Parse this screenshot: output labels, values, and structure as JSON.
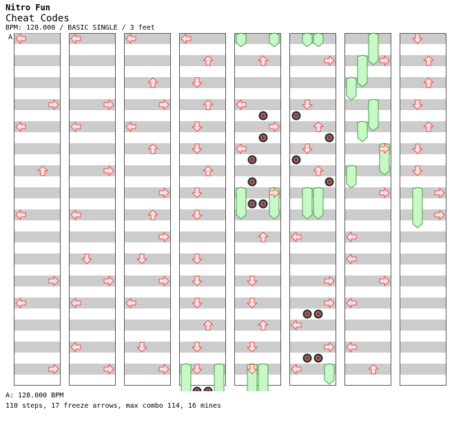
{
  "song": {
    "artist": "Nitro Fun",
    "title": "Cheat Codes",
    "info": "BPM: 128.000 / BASIC SINGLE / 3 feet"
  },
  "section_marker": "A",
  "footer": {
    "bpm_line": "A: 128.000 BPM",
    "stats": "110 steps, 17 freeze arrows, max combo 114, 16 mines"
  },
  "stats": {
    "steps": 110,
    "freeze_arrows": 17,
    "max_combo": 114,
    "mines": 16,
    "bpm": 128.0,
    "difficulty": "BASIC",
    "style": "SINGLE",
    "feet": 3
  },
  "colors": {
    "arrow_fill": "#ffe0e0",
    "arrow_stroke": "#e05050",
    "freeze_fill": "#c8f8c8",
    "freeze_stroke": "#40a040",
    "mine_outer": "#303030",
    "mine_center": "#c02020",
    "stripe": "#cccccc"
  },
  "lanes": [
    "left",
    "down",
    "up",
    "right"
  ],
  "chart_data": {
    "type": "step-chart",
    "measures_per_column": 4,
    "rows_per_measure": 4,
    "notes": [
      {
        "c": 0,
        "r": 0,
        "l": "left"
      },
      {
        "c": 0,
        "r": 3,
        "l": "right"
      },
      {
        "c": 0,
        "r": 4,
        "l": "left"
      },
      {
        "c": 0,
        "r": 6,
        "l": "up"
      },
      {
        "c": 0,
        "r": 8,
        "l": "left"
      },
      {
        "c": 0,
        "r": 11,
        "l": "right"
      },
      {
        "c": 0,
        "r": 12,
        "l": "left"
      },
      {
        "c": 0,
        "r": 15,
        "l": "right"
      },
      {
        "c": 1,
        "r": 0,
        "l": "left"
      },
      {
        "c": 1,
        "r": 3,
        "l": "right"
      },
      {
        "c": 1,
        "r": 4,
        "l": "left"
      },
      {
        "c": 1,
        "r": 6,
        "l": "right"
      },
      {
        "c": 1,
        "r": 8,
        "l": "left"
      },
      {
        "c": 1,
        "r": 10,
        "l": "down"
      },
      {
        "c": 1,
        "r": 11,
        "l": "right"
      },
      {
        "c": 1,
        "r": 12,
        "l": "left"
      },
      {
        "c": 1,
        "r": 14,
        "l": "left"
      },
      {
        "c": 1,
        "r": 15,
        "l": "right"
      },
      {
        "c": 2,
        "r": 0,
        "l": "left"
      },
      {
        "c": 2,
        "r": 2,
        "l": "up"
      },
      {
        "c": 2,
        "r": 3,
        "l": "right"
      },
      {
        "c": 2,
        "r": 4,
        "l": "left"
      },
      {
        "c": 2,
        "r": 5,
        "l": "up"
      },
      {
        "c": 2,
        "r": 7,
        "l": "right"
      },
      {
        "c": 2,
        "r": 8,
        "l": "up"
      },
      {
        "c": 2,
        "r": 9,
        "l": "right"
      },
      {
        "c": 2,
        "r": 10,
        "l": "down"
      },
      {
        "c": 2,
        "r": 11,
        "l": "right"
      },
      {
        "c": 2,
        "r": 12,
        "l": "left"
      },
      {
        "c": 2,
        "r": 14,
        "l": "down"
      },
      {
        "c": 2,
        "r": 15,
        "l": "right"
      },
      {
        "c": 3,
        "r": 0,
        "l": "left"
      },
      {
        "c": 3,
        "r": 1,
        "l": "up"
      },
      {
        "c": 3,
        "r": 2,
        "l": "down"
      },
      {
        "c": 3,
        "r": 3,
        "l": "up"
      },
      {
        "c": 3,
        "r": 4,
        "l": "down"
      },
      {
        "c": 3,
        "r": 5,
        "l": "down"
      },
      {
        "c": 3,
        "r": 6,
        "l": "up"
      },
      {
        "c": 3,
        "r": 7,
        "l": "down"
      },
      {
        "c": 3,
        "r": 8,
        "l": "down"
      },
      {
        "c": 3,
        "r": 10,
        "l": "down"
      },
      {
        "c": 3,
        "r": 11,
        "l": "down"
      },
      {
        "c": 3,
        "r": 12,
        "l": "down"
      },
      {
        "c": 3,
        "r": 13,
        "l": "up"
      },
      {
        "c": 3,
        "r": 14,
        "l": "down"
      },
      {
        "c": 3,
        "r": 15,
        "l": "down"
      },
      {
        "c": 4,
        "r": 1,
        "l": "up"
      },
      {
        "c": 4,
        "r": 3,
        "l": "left"
      },
      {
        "c": 4,
        "r": 4,
        "l": "right"
      },
      {
        "c": 4,
        "r": 5,
        "l": "left"
      },
      {
        "c": 4,
        "r": 7,
        "l": "right"
      },
      {
        "c": 4,
        "r": 9,
        "l": "up"
      },
      {
        "c": 4,
        "r": 11,
        "l": "down"
      },
      {
        "c": 4,
        "r": 12,
        "l": "down"
      },
      {
        "c": 4,
        "r": 13,
        "l": "up"
      },
      {
        "c": 4,
        "r": 14,
        "l": "down"
      },
      {
        "c": 4,
        "r": 15,
        "l": "down"
      },
      {
        "c": 5,
        "r": 1,
        "l": "right"
      },
      {
        "c": 5,
        "r": 3,
        "l": "down"
      },
      {
        "c": 5,
        "r": 4,
        "l": "up"
      },
      {
        "c": 5,
        "r": 5,
        "l": "down"
      },
      {
        "c": 5,
        "r": 6,
        "l": "up"
      },
      {
        "c": 5,
        "r": 9,
        "l": "left"
      },
      {
        "c": 5,
        "r": 11,
        "l": "right"
      },
      {
        "c": 5,
        "r": 12,
        "l": "right"
      },
      {
        "c": 5,
        "r": 13,
        "l": "left"
      },
      {
        "c": 5,
        "r": 14,
        "l": "right"
      },
      {
        "c": 5,
        "r": 15,
        "l": "left"
      },
      {
        "c": 6,
        "r": 1,
        "l": "right"
      },
      {
        "c": 6,
        "r": 5,
        "l": "right"
      },
      {
        "c": 6,
        "r": 7,
        "l": "right"
      },
      {
        "c": 6,
        "r": 9,
        "l": "left"
      },
      {
        "c": 6,
        "r": 10,
        "l": "left"
      },
      {
        "c": 6,
        "r": 11,
        "l": "right"
      },
      {
        "c": 6,
        "r": 12,
        "l": "left"
      },
      {
        "c": 6,
        "r": 14,
        "l": "left"
      },
      {
        "c": 6,
        "r": 15,
        "l": "up"
      },
      {
        "c": 7,
        "r": 0,
        "l": "down"
      },
      {
        "c": 7,
        "r": 1,
        "l": "up"
      },
      {
        "c": 7,
        "r": 2,
        "l": "up"
      },
      {
        "c": 7,
        "r": 3,
        "l": "down"
      },
      {
        "c": 7,
        "r": 4,
        "l": "up"
      },
      {
        "c": 7,
        "r": 5,
        "l": "down"
      },
      {
        "c": 7,
        "r": 6,
        "l": "down"
      },
      {
        "c": 7,
        "r": 7,
        "l": "right"
      },
      {
        "c": 7,
        "r": 8,
        "l": "right"
      }
    ],
    "freezes": [
      {
        "c": 3,
        "r0": 15,
        "r1": 16,
        "l": "left"
      },
      {
        "c": 3,
        "r0": 15,
        "r1": 16,
        "l": "right"
      },
      {
        "c": 4,
        "r0": 0,
        "r1": 0,
        "l": "left"
      },
      {
        "c": 4,
        "r0": 0,
        "r1": 0,
        "l": "right"
      },
      {
        "c": 4,
        "r0": 7,
        "r1": 8,
        "l": "left"
      },
      {
        "c": 4,
        "r0": 7,
        "r1": 8,
        "l": "right"
      },
      {
        "c": 4,
        "r0": 15,
        "r1": 16,
        "l": "down"
      },
      {
        "c": 4,
        "r0": 15,
        "r1": 16,
        "l": "up"
      },
      {
        "c": 5,
        "r0": 0,
        "r1": 0,
        "l": "down"
      },
      {
        "c": 5,
        "r0": 0,
        "r1": 0,
        "l": "up"
      },
      {
        "c": 5,
        "r0": 7,
        "r1": 8,
        "l": "down"
      },
      {
        "c": 5,
        "r0": 7,
        "r1": 8,
        "l": "up"
      },
      {
        "c": 5,
        "r0": 15,
        "r1": 15.5,
        "l": "right"
      },
      {
        "c": 6,
        "r0": 0,
        "r1": 1,
        "l": "up"
      },
      {
        "c": 6,
        "r0": 1,
        "r1": 2,
        "l": "down"
      },
      {
        "c": 6,
        "r0": 2,
        "r1": 2.6,
        "l": "left"
      },
      {
        "c": 6,
        "r0": 3,
        "r1": 4,
        "l": "up"
      },
      {
        "c": 6,
        "r0": 4,
        "r1": 4.5,
        "l": "down"
      },
      {
        "c": 6,
        "r0": 5,
        "r1": 6,
        "l": "right"
      },
      {
        "c": 6,
        "r0": 6,
        "r1": 6.6,
        "l": "left"
      },
      {
        "c": 7,
        "r0": 7,
        "r1": 8.4,
        "l": "down"
      }
    ],
    "mines": [
      {
        "c": 3,
        "r": 16,
        "l": "down"
      },
      {
        "c": 3,
        "r": 16,
        "l": "up"
      },
      {
        "c": 4,
        "r": 3.5,
        "l": "up"
      },
      {
        "c": 4,
        "r": 4.5,
        "l": "up"
      },
      {
        "c": 4,
        "r": 5.5,
        "l": "down"
      },
      {
        "c": 4,
        "r": 6.5,
        "l": "down"
      },
      {
        "c": 4,
        "r": 7.5,
        "l": "down"
      },
      {
        "c": 4,
        "r": 7.5,
        "l": "up"
      },
      {
        "c": 5,
        "r": 3.5,
        "l": "left"
      },
      {
        "c": 5,
        "r": 4.5,
        "l": "right"
      },
      {
        "c": 5,
        "r": 5.5,
        "l": "left"
      },
      {
        "c": 5,
        "r": 6.5,
        "l": "right"
      },
      {
        "c": 5,
        "r": 12.5,
        "l": "down"
      },
      {
        "c": 5,
        "r": 12.5,
        "l": "up"
      },
      {
        "c": 5,
        "r": 14.5,
        "l": "down"
      },
      {
        "c": 5,
        "r": 14.5,
        "l": "up"
      }
    ]
  }
}
